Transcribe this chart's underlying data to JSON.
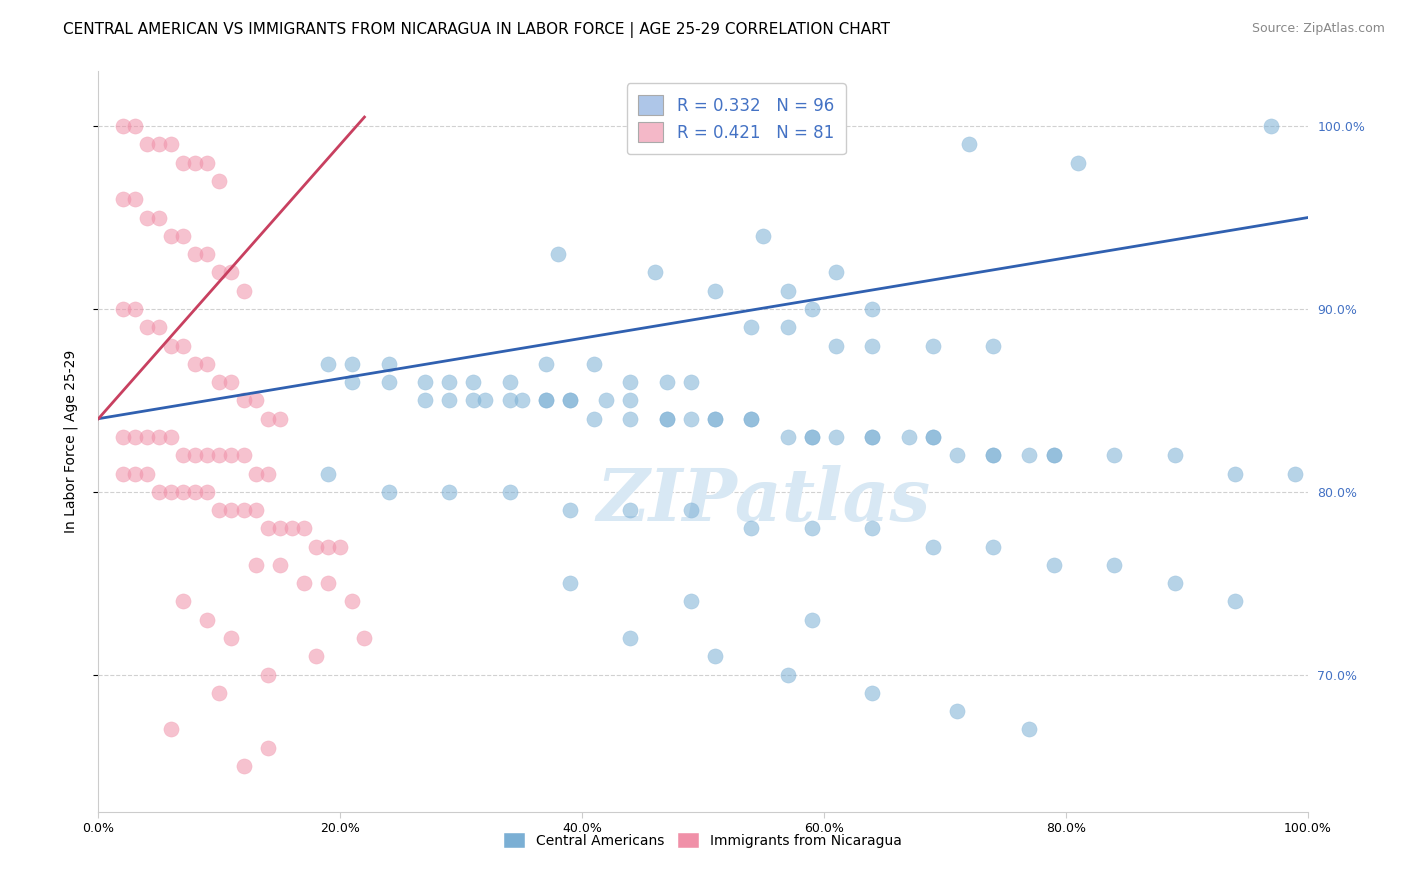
{
  "title": "CENTRAL AMERICAN VS IMMIGRANTS FROM NICARAGUA IN LABOR FORCE | AGE 25-29 CORRELATION CHART",
  "source": "Source: ZipAtlas.com",
  "ylabel": "In Labor Force | Age 25-29",
  "xticklabels": [
    "0.0%",
    "20.0%",
    "40.0%",
    "60.0%",
    "80.0%",
    "100.0%"
  ],
  "y_right_labels": [
    "70.0%",
    "80.0%",
    "90.0%",
    "100.0%"
  ],
  "xlim": [
    0,
    1
  ],
  "ylim": [
    0.625,
    1.03
  ],
  "legend_entries": [
    {
      "label": "R = 0.332   N = 96"
    },
    {
      "label": "R = 0.421   N = 81"
    }
  ],
  "blue_scatter_x": [
    0.72,
    0.81,
    0.55,
    0.61,
    0.38,
    0.46,
    0.51,
    0.57,
    0.59,
    0.64,
    0.19,
    0.21,
    0.24,
    0.27,
    0.29,
    0.31,
    0.34,
    0.37,
    0.39,
    0.42,
    0.44,
    0.47,
    0.49,
    0.51,
    0.54,
    0.57,
    0.59,
    0.61,
    0.64,
    0.67,
    0.69,
    0.71,
    0.74,
    0.77,
    0.79,
    0.37,
    0.41,
    0.44,
    0.47,
    0.49,
    0.29,
    0.32,
    0.35,
    0.39,
    0.54,
    0.57,
    0.61,
    0.64,
    0.69,
    0.74,
    0.21,
    0.24,
    0.27,
    0.31,
    0.34,
    0.37,
    0.41,
    0.44,
    0.47,
    0.51,
    0.54,
    0.59,
    0.64,
    0.69,
    0.74,
    0.79,
    0.84,
    0.89,
    0.94,
    0.99,
    0.19,
    0.24,
    0.29,
    0.34,
    0.39,
    0.44,
    0.49,
    0.54,
    0.59,
    0.64,
    0.69,
    0.74,
    0.79,
    0.84,
    0.89,
    0.94,
    0.97,
    0.39,
    0.49,
    0.59,
    0.44,
    0.51,
    0.57,
    0.64,
    0.71,
    0.77
  ],
  "blue_scatter_y": [
    0.99,
    0.98,
    0.94,
    0.92,
    0.93,
    0.92,
    0.91,
    0.91,
    0.9,
    0.9,
    0.87,
    0.87,
    0.87,
    0.86,
    0.86,
    0.86,
    0.86,
    0.85,
    0.85,
    0.85,
    0.85,
    0.84,
    0.84,
    0.84,
    0.84,
    0.83,
    0.83,
    0.83,
    0.83,
    0.83,
    0.83,
    0.82,
    0.82,
    0.82,
    0.82,
    0.87,
    0.87,
    0.86,
    0.86,
    0.86,
    0.85,
    0.85,
    0.85,
    0.85,
    0.89,
    0.89,
    0.88,
    0.88,
    0.88,
    0.88,
    0.86,
    0.86,
    0.85,
    0.85,
    0.85,
    0.85,
    0.84,
    0.84,
    0.84,
    0.84,
    0.84,
    0.83,
    0.83,
    0.83,
    0.82,
    0.82,
    0.82,
    0.82,
    0.81,
    0.81,
    0.81,
    0.8,
    0.8,
    0.8,
    0.79,
    0.79,
    0.79,
    0.78,
    0.78,
    0.78,
    0.77,
    0.77,
    0.76,
    0.76,
    0.75,
    0.74,
    1.0,
    0.75,
    0.74,
    0.73,
    0.72,
    0.71,
    0.7,
    0.69,
    0.68,
    0.67
  ],
  "pink_scatter_x": [
    0.02,
    0.03,
    0.04,
    0.05,
    0.06,
    0.07,
    0.08,
    0.09,
    0.1,
    0.02,
    0.03,
    0.04,
    0.05,
    0.06,
    0.07,
    0.08,
    0.09,
    0.1,
    0.11,
    0.12,
    0.02,
    0.03,
    0.04,
    0.05,
    0.06,
    0.07,
    0.08,
    0.09,
    0.1,
    0.11,
    0.12,
    0.13,
    0.14,
    0.15,
    0.02,
    0.03,
    0.04,
    0.05,
    0.06,
    0.07,
    0.08,
    0.09,
    0.1,
    0.11,
    0.12,
    0.13,
    0.14,
    0.02,
    0.03,
    0.04,
    0.05,
    0.06,
    0.07,
    0.08,
    0.09,
    0.1,
    0.11,
    0.12,
    0.13,
    0.14,
    0.15,
    0.16,
    0.17,
    0.18,
    0.19,
    0.2,
    0.13,
    0.15,
    0.17,
    0.19,
    0.21,
    0.07,
    0.09,
    0.11,
    0.22,
    0.18,
    0.14,
    0.1,
    0.06,
    0.14,
    0.12
  ],
  "pink_scatter_y": [
    1.0,
    1.0,
    0.99,
    0.99,
    0.99,
    0.98,
    0.98,
    0.98,
    0.97,
    0.96,
    0.96,
    0.95,
    0.95,
    0.94,
    0.94,
    0.93,
    0.93,
    0.92,
    0.92,
    0.91,
    0.9,
    0.9,
    0.89,
    0.89,
    0.88,
    0.88,
    0.87,
    0.87,
    0.86,
    0.86,
    0.85,
    0.85,
    0.84,
    0.84,
    0.83,
    0.83,
    0.83,
    0.83,
    0.83,
    0.82,
    0.82,
    0.82,
    0.82,
    0.82,
    0.82,
    0.81,
    0.81,
    0.81,
    0.81,
    0.81,
    0.8,
    0.8,
    0.8,
    0.8,
    0.8,
    0.79,
    0.79,
    0.79,
    0.79,
    0.78,
    0.78,
    0.78,
    0.78,
    0.77,
    0.77,
    0.77,
    0.76,
    0.76,
    0.75,
    0.75,
    0.74,
    0.74,
    0.73,
    0.72,
    0.72,
    0.71,
    0.7,
    0.69,
    0.67,
    0.66,
    0.65
  ],
  "blue_line_x": [
    0.0,
    1.0
  ],
  "blue_line_y": [
    0.84,
    0.95
  ],
  "pink_line_x": [
    0.0,
    0.22
  ],
  "pink_line_y": [
    0.84,
    1.005
  ],
  "scatter_color_blue": "#7bafd4",
  "scatter_color_pink": "#f090a8",
  "line_color_blue": "#3060b0",
  "line_color_pink": "#c84060",
  "legend_box_color_blue": "#aec6e8",
  "legend_box_color_pink": "#f4b8c8",
  "legend_text_R_color": "#000000",
  "legend_text_N_color": "#4472c4",
  "right_axis_color": "#4472c4",
  "grid_color": "#cccccc",
  "watermark_text": "ZIPatlas",
  "title_fontsize": 11,
  "axis_fontsize": 10,
  "tick_fontsize": 9,
  "legend_fontsize": 12
}
